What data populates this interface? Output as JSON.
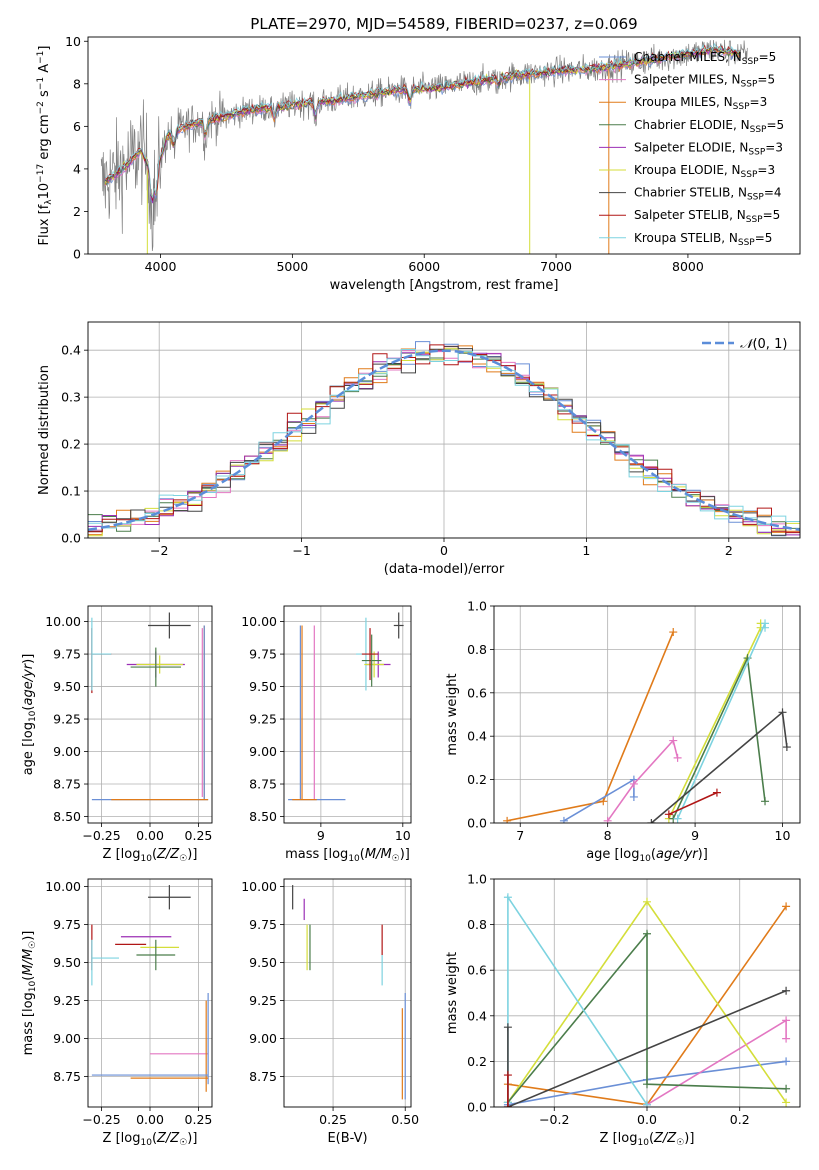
{
  "figure": {
    "title": "PLATE=2970, MJD=54589, FIBERID=0237, z=0.069"
  },
  "colors": {
    "chabrier_miles": "#6a8fd6",
    "salpeter_miles": "#e377c2",
    "kroupa_miles": "#e07b1a",
    "chabrier_elodie": "#4b7d4b",
    "salpeter_elodie": "#9b2fb5",
    "kroupa_elodie": "#d4de3a",
    "chabrier_stelib": "#444444",
    "salpeter_stelib": "#b01616",
    "kroupa_stelib": "#7dd3e0",
    "data": "#808080",
    "normal": "#5b8dd9"
  },
  "chart_data": [
    {
      "id": "spectrum",
      "type": "line",
      "xlabel": "wavelength [Angstrom, rest frame]",
      "ylabel": "Flux [f_λ10^-17 erg cm^-2 s^-1 A^-1]",
      "xlim": [
        3450,
        8850
      ],
      "ylim": [
        0,
        10.2
      ],
      "xticks": [
        4000,
        5000,
        6000,
        7000,
        8000
      ],
      "yticks": [
        0,
        2,
        4,
        6,
        8,
        10
      ],
      "legend_placement": "right",
      "continuum": {
        "x": [
          3550,
          3650,
          3750,
          3850,
          3950,
          4050,
          4150,
          4300,
          4500,
          4700,
          4900,
          5100,
          5300,
          5500,
          5800,
          6100,
          6400,
          6700,
          7000,
          7300,
          7600,
          7900,
          8200,
          8400
        ],
        "y": [
          3.3,
          3.7,
          4.2,
          4.9,
          3.5,
          5.5,
          5.9,
          6.2,
          6.5,
          6.8,
          6.9,
          7.1,
          7.2,
          7.4,
          7.7,
          7.8,
          8.1,
          8.4,
          8.6,
          8.7,
          9.0,
          9.3,
          9.6,
          9.4
        ]
      },
      "series": [
        {
          "name": "Chabrier MILES, N_SSP=5",
          "key": "chabrier_miles"
        },
        {
          "name": "Salpeter MILES, N_SSP=5",
          "key": "salpeter_miles"
        },
        {
          "name": "Kroupa MILES, N_SSP=3",
          "key": "kroupa_miles"
        },
        {
          "name": "Chabrier ELODIE, N_SSP=5",
          "key": "chabrier_elodie"
        },
        {
          "name": "Salpeter ELODIE, N_SSP=3",
          "key": "salpeter_elodie"
        },
        {
          "name": "Kroupa ELODIE, N_SSP=3",
          "key": "kroupa_elodie"
        },
        {
          "name": "Chabrier STELIB, N_SSP=4",
          "key": "chabrier_stelib"
        },
        {
          "name": "Salpeter STELIB, N_SSP=5",
          "key": "salpeter_stelib"
        },
        {
          "name": "Kroupa STELIB, N_SSP=5",
          "key": "kroupa_stelib"
        }
      ]
    },
    {
      "id": "residuals",
      "type": "line",
      "xlabel": "(data-model)/error",
      "ylabel": "Normed distribution",
      "xlim": [
        -2.5,
        2.5
      ],
      "ylim": [
        0,
        0.46
      ],
      "xticks": [
        -2,
        -1,
        0,
        1,
        2
      ],
      "yticks": [
        0.0,
        0.1,
        0.2,
        0.3,
        0.4
      ],
      "grid": true,
      "legend": "N(0,1)",
      "legend_placement": "top-right",
      "bin_width": 0.1
    },
    {
      "id": "age_vs_z",
      "type": "scatter",
      "xlabel": "Z [log10(Z/Z☉)]",
      "ylabel": "age  [log10(age/yr)]",
      "xlim": [
        -0.32,
        0.32
      ],
      "ylim": [
        8.45,
        10.12
      ],
      "xticks": [
        -0.25,
        0.0,
        0.25
      ],
      "yticks": [
        8.5,
        8.75,
        9.0,
        9.25,
        9.5,
        9.75,
        10.0
      ],
      "grid": true,
      "errorbars": [
        {
          "key": "chabrier_stelib",
          "x": 0.1,
          "y": 9.97,
          "xerr": 0.11,
          "yerr": 0.1
        },
        {
          "key": "salpeter_stelib",
          "x": -0.25,
          "y": 9.75,
          "xerr": 0.05,
          "yerr": 0.0
        },
        {
          "key": "kroupa_stelib",
          "x": -0.25,
          "y": 9.75,
          "xerr": 0.05,
          "yerr": 0.0
        },
        {
          "key": "salpeter_elodie",
          "x": 0.03,
          "y": 9.67,
          "xerr": 0.15,
          "yerr": 0.1
        },
        {
          "key": "kroupa_elodie",
          "x": 0.05,
          "y": 9.67,
          "xerr": 0.12,
          "yerr": 0.07
        },
        {
          "key": "chabrier_elodie",
          "x": 0.03,
          "y": 9.65,
          "xerr": 0.13,
          "yerr": 0.15
        },
        {
          "key": "salpeter_stelib",
          "x": -0.3,
          "y": 9.7,
          "xerr": 0.0,
          "yerr": 0.25
        },
        {
          "key": "kroupa_stelib",
          "x": -0.3,
          "y": 9.75,
          "xerr": 0.0,
          "yerr": 0.28
        },
        {
          "key": "salpeter_miles",
          "x": 0.27,
          "y": 9.3,
          "xerr": 0.0,
          "yerr": 0.65
        },
        {
          "key": "kroupa_miles",
          "x": 0.28,
          "y": 9.3,
          "xerr": 0.0,
          "yerr": 0.67
        },
        {
          "key": "chabrier_miles",
          "x": 0.28,
          "y": 9.3,
          "xerr": 0.0,
          "yerr": 0.67
        },
        {
          "key": "chabrier_miles",
          "x": 0.0,
          "y": 8.63,
          "xerr": 0.3,
          "yerr": 0.0
        },
        {
          "key": "kroupa_miles",
          "x": 0.05,
          "y": 8.63,
          "xerr": 0.25,
          "yerr": 0.0
        }
      ]
    },
    {
      "id": "age_vs_mass",
      "type": "scatter",
      "xlabel": "mass [log10(M/M☉)]",
      "xlim": [
        8.55,
        10.1
      ],
      "ylim": [
        8.45,
        10.12
      ],
      "xticks": [
        9,
        10
      ],
      "yticks": [
        8.5,
        8.75,
        9.0,
        9.25,
        9.5,
        9.75,
        10.0
      ],
      "grid": true,
      "errorbars": [
        {
          "key": "chabrier_stelib",
          "x": 9.95,
          "y": 9.97,
          "xerr": 0.06,
          "yerr": 0.1
        },
        {
          "key": "kroupa_stelib",
          "x": 9.55,
          "y": 9.75,
          "xerr": 0.12,
          "yerr": 0.28
        },
        {
          "key": "salpeter_elodie",
          "x": 9.7,
          "y": 9.67,
          "xerr": 0.15,
          "yerr": 0.1
        },
        {
          "key": "kroupa_elodie",
          "x": 9.65,
          "y": 9.67,
          "xerr": 0.12,
          "yerr": 0.1
        },
        {
          "key": "chabrier_elodie",
          "x": 9.62,
          "y": 9.7,
          "xerr": 0.12,
          "yerr": 0.2
        },
        {
          "key": "salpeter_stelib",
          "x": 9.6,
          "y": 9.75,
          "xerr": 0.1,
          "yerr": 0.2
        },
        {
          "key": "salpeter_miles",
          "x": 8.92,
          "y": 9.3,
          "xerr": 0.0,
          "yerr": 0.67
        },
        {
          "key": "kroupa_miles",
          "x": 8.77,
          "y": 9.3,
          "xerr": 0.0,
          "yerr": 0.67
        },
        {
          "key": "chabrier_miles",
          "x": 8.75,
          "y": 9.3,
          "xerr": 0.0,
          "yerr": 0.67
        },
        {
          "key": "chabrier_miles",
          "x": 8.95,
          "y": 8.63,
          "xerr": 0.35,
          "yerr": 0.0
        },
        {
          "key": "kroupa_miles",
          "x": 8.8,
          "y": 8.63,
          "xerr": 0.15,
          "yerr": 0.0
        }
      ]
    },
    {
      "id": "weight_vs_age",
      "type": "line",
      "xlabel": "age  [log10(age/yr)]",
      "ylabel": "mass weight",
      "xlim": [
        6.7,
        10.2
      ],
      "ylim": [
        0,
        1
      ],
      "xticks": [
        7,
        8,
        9,
        10
      ],
      "yticks": [
        0.0,
        0.2,
        0.4,
        0.6,
        0.8,
        1.0
      ],
      "grid": true,
      "series": [
        {
          "key": "kroupa_miles",
          "x": [
            6.85,
            7.95,
            8.75
          ],
          "y": [
            0.01,
            0.1,
            0.88
          ]
        },
        {
          "key": "chabrier_miles",
          "x": [
            7.5,
            8.3,
            8.3
          ],
          "y": [
            0.01,
            0.2,
            0.12
          ]
        },
        {
          "key": "salpeter_miles",
          "x": [
            8.0,
            8.3,
            8.75,
            8.8
          ],
          "y": [
            0.01,
            0.18,
            0.38,
            0.3
          ]
        },
        {
          "key": "kroupa_elodie",
          "x": [
            8.7,
            9.75,
            9.75
          ],
          "y": [
            0.02,
            0.9,
            0.92
          ]
        },
        {
          "key": "chabrier_elodie",
          "x": [
            8.75,
            9.6,
            9.8
          ],
          "y": [
            0.02,
            0.76,
            0.1
          ]
        },
        {
          "key": "kroupa_stelib",
          "x": [
            8.8,
            9.8,
            9.8
          ],
          "y": [
            0.02,
            0.92,
            0.9
          ]
        },
        {
          "key": "chabrier_stelib",
          "x": [
            8.5,
            10.0,
            10.05
          ],
          "y": [
            0.0,
            0.51,
            0.35
          ]
        },
        {
          "key": "salpeter_stelib",
          "x": [
            8.7,
            9.25
          ],
          "y": [
            0.04,
            0.14
          ]
        }
      ]
    },
    {
      "id": "mass_vs_z",
      "type": "scatter",
      "xlabel": "Z [log10(Z/Z☉)]",
      "ylabel": "mass [log10(M/M☉)]",
      "xlim": [
        -0.32,
        0.32
      ],
      "ylim": [
        8.55,
        10.05
      ],
      "xticks": [
        -0.25,
        0.0,
        0.25
      ],
      "yticks": [
        8.75,
        9.0,
        9.25,
        9.5,
        9.75,
        10.0
      ],
      "grid": true,
      "errorbars": [
        {
          "key": "chabrier_stelib",
          "x": 0.1,
          "y": 9.93,
          "xerr": 0.11,
          "yerr": 0.08
        },
        {
          "key": "salpeter_elodie",
          "x": -0.02,
          "y": 9.67,
          "xerr": 0.13,
          "yerr": 0.0
        },
        {
          "key": "salpeter_stelib",
          "x": -0.1,
          "y": 9.62,
          "xerr": 0.08,
          "yerr": 0.0
        },
        {
          "key": "kroupa_elodie",
          "x": 0.05,
          "y": 9.6,
          "xerr": 0.1,
          "yerr": 0.0
        },
        {
          "key": "chabrier_elodie",
          "x": 0.03,
          "y": 9.55,
          "xerr": 0.1,
          "yerr": 0.1
        },
        {
          "key": "kroupa_stelib",
          "x": -0.23,
          "y": 9.53,
          "xerr": 0.07,
          "yerr": 0.0
        },
        {
          "key": "salpeter_stelib",
          "x": -0.3,
          "y": 9.6,
          "xerr": 0.0,
          "yerr": 0.15
        },
        {
          "key": "kroupa_stelib",
          "x": -0.3,
          "y": 9.5,
          "xerr": 0.0,
          "yerr": 0.15
        },
        {
          "key": "salpeter_miles",
          "x": 0.15,
          "y": 8.9,
          "xerr": 0.15,
          "yerr": 0.0
        },
        {
          "key": "kroupa_miles",
          "x": 0.29,
          "y": 8.95,
          "xerr": 0.0,
          "yerr": 0.3
        },
        {
          "key": "chabrier_miles",
          "x": 0.3,
          "y": 9.0,
          "xerr": 0.0,
          "yerr": 0.3
        },
        {
          "key": "chabrier_miles",
          "x": 0.0,
          "y": 8.76,
          "xerr": 0.3,
          "yerr": 0.0
        },
        {
          "key": "kroupa_miles",
          "x": 0.1,
          "y": 8.74,
          "xerr": 0.2,
          "yerr": 0.0
        }
      ]
    },
    {
      "id": "mass_vs_ebv",
      "type": "scatter",
      "xlabel": "E(B-V)",
      "xlim": [
        0.08,
        0.52
      ],
      "ylim": [
        8.55,
        10.05
      ],
      "xticks": [
        0.25,
        0.5
      ],
      "yticks": [
        8.75,
        9.0,
        9.25,
        9.5,
        9.75,
        10.0
      ],
      "grid": true,
      "errorbars": [
        {
          "key": "chabrier_stelib",
          "x": 0.11,
          "y": 9.93,
          "xerr": 0.0,
          "yerr": 0.08
        },
        {
          "key": "salpeter_elodie",
          "x": 0.15,
          "y": 9.85,
          "xerr": 0.0,
          "yerr": 0.07
        },
        {
          "key": "kroupa_elodie",
          "x": 0.16,
          "y": 9.6,
          "xerr": 0.0,
          "yerr": 0.15
        },
        {
          "key": "chabrier_elodie",
          "x": 0.17,
          "y": 9.6,
          "xerr": 0.0,
          "yerr": 0.15
        },
        {
          "key": "salpeter_stelib",
          "x": 0.42,
          "y": 9.65,
          "xerr": 0.0,
          "yerr": 0.1
        },
        {
          "key": "kroupa_stelib",
          "x": 0.42,
          "y": 9.45,
          "xerr": 0.0,
          "yerr": 0.1
        },
        {
          "key": "kroupa_miles",
          "x": 0.49,
          "y": 8.9,
          "xerr": 0.0,
          "yerr": 0.3
        },
        {
          "key": "chabrier_miles",
          "x": 0.5,
          "y": 8.95,
          "xerr": 0.0,
          "yerr": 0.35
        }
      ]
    },
    {
      "id": "weight_vs_z",
      "type": "line",
      "xlabel": "Z [log10(Z/Z☉)]",
      "ylabel": "mass weight",
      "xlim": [
        -0.33,
        0.33
      ],
      "ylim": [
        0,
        1
      ],
      "xticks": [
        -0.2,
        0.0,
        0.2
      ],
      "yticks": [
        0.0,
        0.2,
        0.4,
        0.6,
        0.8,
        1.0
      ],
      "grid": true,
      "series": [
        {
          "key": "kroupa_miles",
          "x": [
            -0.3,
            0.0,
            0.3
          ],
          "y": [
            0.1,
            0.01,
            0.88
          ]
        },
        {
          "key": "chabrier_miles",
          "x": [
            -0.3,
            0.0,
            0.3
          ],
          "y": [
            0.01,
            0.12,
            0.2
          ]
        },
        {
          "key": "salpeter_miles",
          "x": [
            0.0,
            0.3,
            0.3
          ],
          "y": [
            0.01,
            0.38,
            0.3
          ]
        },
        {
          "key": "kroupa_elodie",
          "x": [
            -0.3,
            0.0,
            0.3
          ],
          "y": [
            0.02,
            0.9,
            0.02
          ]
        },
        {
          "key": "chabrier_elodie",
          "x": [
            -0.3,
            0.0,
            0.0,
            0.3
          ],
          "y": [
            0.02,
            0.76,
            0.1,
            0.08
          ]
        },
        {
          "key": "kroupa_stelib",
          "x": [
            -0.3,
            -0.3,
            0.0
          ],
          "y": [
            0.02,
            0.92,
            0.01
          ]
        },
        {
          "key": "chabrier_stelib",
          "x": [
            -0.3,
            -0.3,
            0.3
          ],
          "y": [
            0.35,
            0.0,
            0.51
          ]
        },
        {
          "key": "salpeter_stelib",
          "x": [
            -0.3,
            -0.3
          ],
          "y": [
            0.0,
            0.14
          ]
        }
      ]
    }
  ]
}
